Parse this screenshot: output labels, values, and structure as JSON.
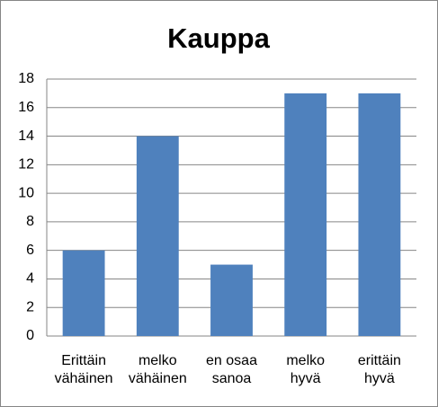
{
  "chart_data": {
    "type": "bar",
    "title": "Kauppa",
    "categories": [
      "Erittäin\nvähäinen",
      "melko\nvähäinen",
      "en osaa\nsanoa",
      "melko\nhyvä",
      "erittäin\nhyvä"
    ],
    "values": [
      6,
      14,
      5,
      17,
      17
    ],
    "color": "#4f81bd",
    "ylim": [
      0,
      18
    ],
    "yticks": [
      0,
      2,
      4,
      6,
      8,
      10,
      12,
      14,
      16,
      18
    ],
    "grid": true
  }
}
